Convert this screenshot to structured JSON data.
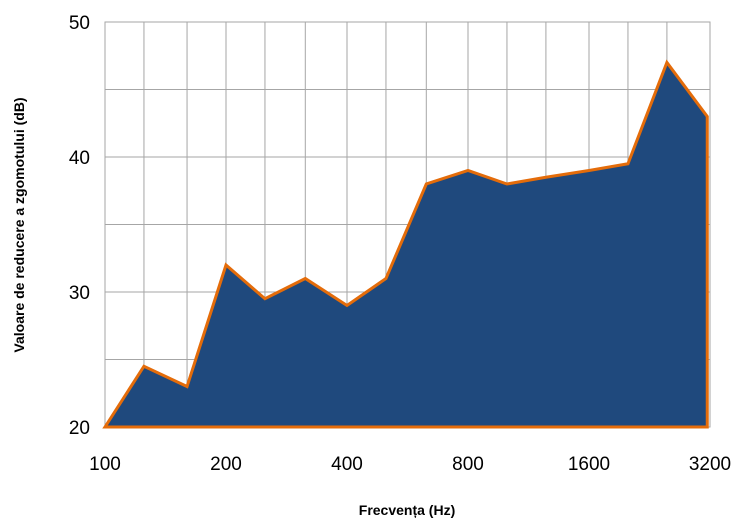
{
  "chart_data": {
    "type": "area",
    "title": "",
    "xlabel": "Frecvența (Hz)",
    "ylabel": "Valoare de reducere a zgomotului (dB)",
    "x_scale": "log2",
    "xlim": [
      100,
      3200
    ],
    "ylim": [
      20,
      50
    ],
    "grid": true,
    "legend": "none",
    "x_ticks": [
      100,
      200,
      400,
      800,
      1600,
      3200
    ],
    "x_tick_labels": [
      "100",
      "200",
      "400",
      "800",
      "1600",
      "3200"
    ],
    "y_ticks": [
      20,
      30,
      40,
      50
    ],
    "y_tick_labels": [
      "20",
      "30",
      "40",
      "50"
    ],
    "series": [
      {
        "x": [
          100,
          125,
          160,
          200,
          250,
          315,
          400,
          500,
          630,
          800,
          1000,
          1250,
          1600,
          2000,
          2500,
          3150
        ],
        "values": [
          20,
          24.5,
          23,
          32,
          29.5,
          31,
          29,
          31,
          38,
          39,
          38,
          38.5,
          39,
          39.5,
          47,
          43
        ],
        "fill_color": "#1f497d",
        "line_color": "#e46c0a"
      }
    ]
  }
}
